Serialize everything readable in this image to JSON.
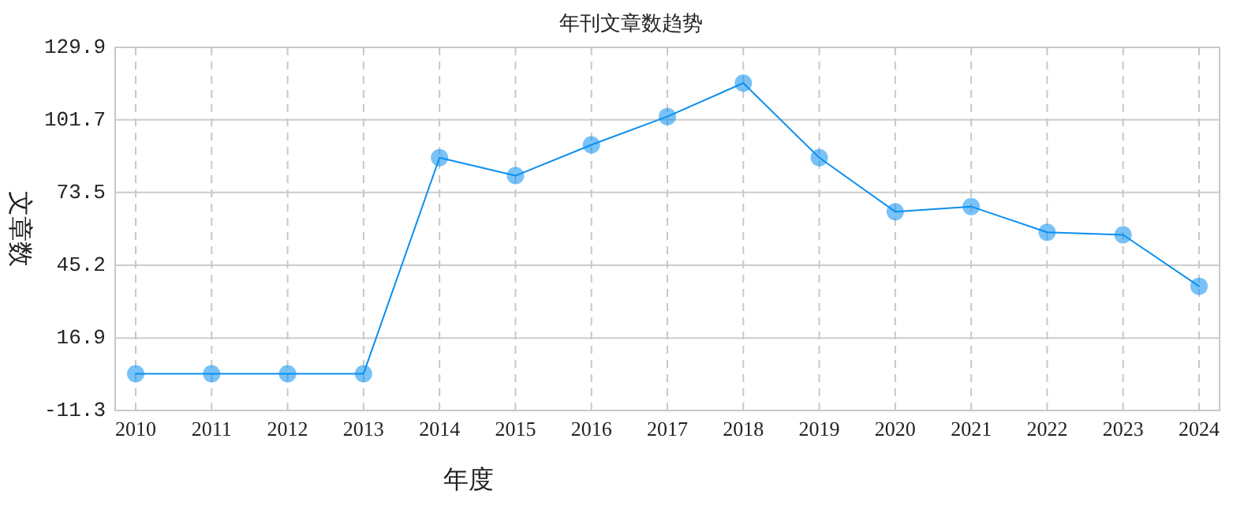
{
  "chart_data": {
    "type": "line",
    "title": "年刊文章数趋势",
    "xlabel": "年度",
    "ylabel": "文章数",
    "categories": [
      "2010",
      "2011",
      "2012",
      "2013",
      "2014",
      "2015",
      "2016",
      "2017",
      "2018",
      "2019",
      "2020",
      "2021",
      "2022",
      "2023",
      "2024"
    ],
    "series": [
      {
        "color": "#0a8ff0",
        "values": [
          3,
          3,
          3,
          3,
          87,
          80,
          92,
          103,
          116,
          87,
          66,
          68,
          58,
          57,
          37
        ]
      }
    ],
    "ylim": [
      -11.3,
      129.9
    ],
    "yticks": [
      -11.3,
      16.9,
      45.2,
      73.5,
      101.7,
      129.9
    ],
    "grid": true,
    "marker": "circle"
  }
}
